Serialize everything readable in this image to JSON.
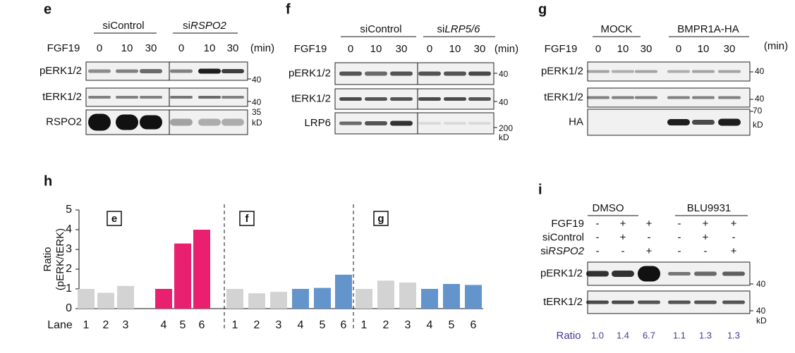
{
  "panel_e": {
    "label": "e",
    "groups": [
      {
        "text": "siControl"
      },
      {
        "prefix": "si",
        "gene": "RSPO2"
      }
    ],
    "treatment": "FGF19",
    "times": [
      "0",
      "10",
      "30",
      "0",
      "10",
      "30"
    ],
    "unit": "(min)",
    "rows": [
      "pERK1/2",
      "tERK1/2",
      "RSPO2"
    ],
    "markers": [
      "40",
      "40",
      "35",
      "kD"
    ]
  },
  "panel_f": {
    "label": "f",
    "groups": [
      {
        "text": "siControl"
      },
      {
        "prefix": "si",
        "gene": "LRP5/6"
      }
    ],
    "treatment": "FGF19",
    "times": [
      "0",
      "10",
      "30",
      "0",
      "10",
      "30"
    ],
    "unit": "(min)",
    "rows": [
      "pERK1/2",
      "tERK1/2",
      "LRP6"
    ],
    "markers": [
      "40",
      "40",
      "200",
      "kD"
    ]
  },
  "panel_g": {
    "label": "g",
    "groups": [
      {
        "text": "MOCK"
      },
      {
        "text": "BMPR1A-HA"
      }
    ],
    "treatment": "FGF19",
    "times": [
      "0",
      "10",
      "30",
      "0",
      "10",
      "30"
    ],
    "unit": "(min)",
    "rows": [
      "pERK1/2",
      "tERK1/2",
      "HA"
    ],
    "markers": [
      "40",
      "40",
      "70",
      "kD"
    ]
  },
  "chart_data": {
    "type": "bar",
    "label": "h",
    "ylabel": [
      "Ratio",
      "(pERK/tERK)"
    ],
    "xlabel": "Lane",
    "ylim": [
      0,
      5
    ],
    "yticks": [
      0,
      1,
      2,
      3,
      4,
      5
    ],
    "groups": [
      {
        "name": "e",
        "categories": [
          "1",
          "2",
          "3",
          "4",
          "5",
          "6"
        ],
        "values": [
          1.0,
          0.8,
          1.15,
          1.0,
          3.3,
          4.0
        ],
        "colors": [
          "#d3d3d3",
          "#d3d3d3",
          "#d3d3d3",
          "#e8206f",
          "#e8206f",
          "#e8206f"
        ]
      },
      {
        "name": "f",
        "categories": [
          "1",
          "2",
          "3",
          "4",
          "5",
          "6"
        ],
        "values": [
          1.0,
          0.78,
          0.85,
          1.0,
          1.05,
          1.72
        ],
        "colors": [
          "#d3d3d3",
          "#d3d3d3",
          "#d3d3d3",
          "#6494cc",
          "#6494cc",
          "#6494cc"
        ]
      },
      {
        "name": "g",
        "categories": [
          "1",
          "2",
          "3",
          "4",
          "5",
          "6"
        ],
        "values": [
          1.0,
          1.42,
          1.32,
          1.0,
          1.25,
          1.2
        ],
        "colors": [
          "#d3d3d3",
          "#d3d3d3",
          "#d3d3d3",
          "#6494cc",
          "#6494cc",
          "#6494cc"
        ]
      }
    ]
  },
  "panel_i": {
    "label": "i",
    "groups": [
      {
        "text": "DMSO"
      },
      {
        "text": "BLU9931"
      }
    ],
    "conditions": [
      {
        "label": {
          "text": "FGF19"
        },
        "signs": [
          "-",
          "+",
          "+",
          "-",
          "+",
          "+"
        ]
      },
      {
        "label": {
          "text": "siControl"
        },
        "signs": [
          "-",
          "+",
          "-",
          "-",
          "+",
          "-"
        ]
      },
      {
        "label": {
          "prefix": "si",
          "gene": "RSPO2"
        },
        "signs": [
          "-",
          "-",
          "+",
          "-",
          "-",
          "+"
        ]
      }
    ],
    "rows": [
      "pERK1/2",
      "tERK1/2"
    ],
    "markers": [
      "40",
      "40",
      "kD"
    ],
    "ratio_label": "Ratio",
    "ratios": [
      "1.0",
      "1.4",
      "6.7",
      "1.1",
      "1.3",
      "1.3"
    ]
  }
}
